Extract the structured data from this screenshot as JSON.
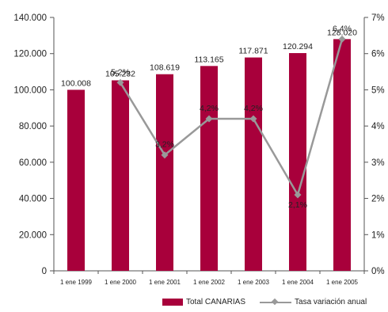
{
  "chart_data": {
    "type": "bar",
    "categories": [
      "1 ene 1999",
      "1 ene 2000",
      "1 ene 2001",
      "1 ene 2002",
      "1 ene 2003",
      "1 ene 2004",
      "1 ene 2005"
    ],
    "series": [
      {
        "name": "Total CANARIAS",
        "type": "bar",
        "axis": "left",
        "values": [
          100008,
          105232,
          108619,
          113165,
          117871,
          120294,
          128020
        ],
        "labels": [
          "100.008",
          "105.232",
          "108.619",
          "113.165",
          "117.871",
          "120.294",
          "128.020"
        ],
        "color": "#A8003B"
      },
      {
        "name": "Tasa variación anual",
        "type": "line",
        "axis": "right",
        "values": [
          null,
          5.2,
          3.2,
          4.2,
          4.2,
          2.1,
          6.4
        ],
        "labels": [
          null,
          "5,2%",
          "3,2%",
          "4,2%",
          "4,2%",
          "2,1%",
          "6,4%"
        ],
        "color": "#999999"
      }
    ],
    "ylim_left": [
      0,
      140000
    ],
    "yticks_left": [
      "0",
      "20.000",
      "40.000",
      "60.000",
      "80.000",
      "100.000",
      "120.000",
      "140.000"
    ],
    "ylim_right": [
      0,
      7
    ],
    "yticks_right": [
      "0%",
      "1%",
      "2%",
      "3%",
      "4%",
      "5%",
      "6%",
      "7%"
    ],
    "grid": false,
    "legend_position": "bottom-right"
  }
}
